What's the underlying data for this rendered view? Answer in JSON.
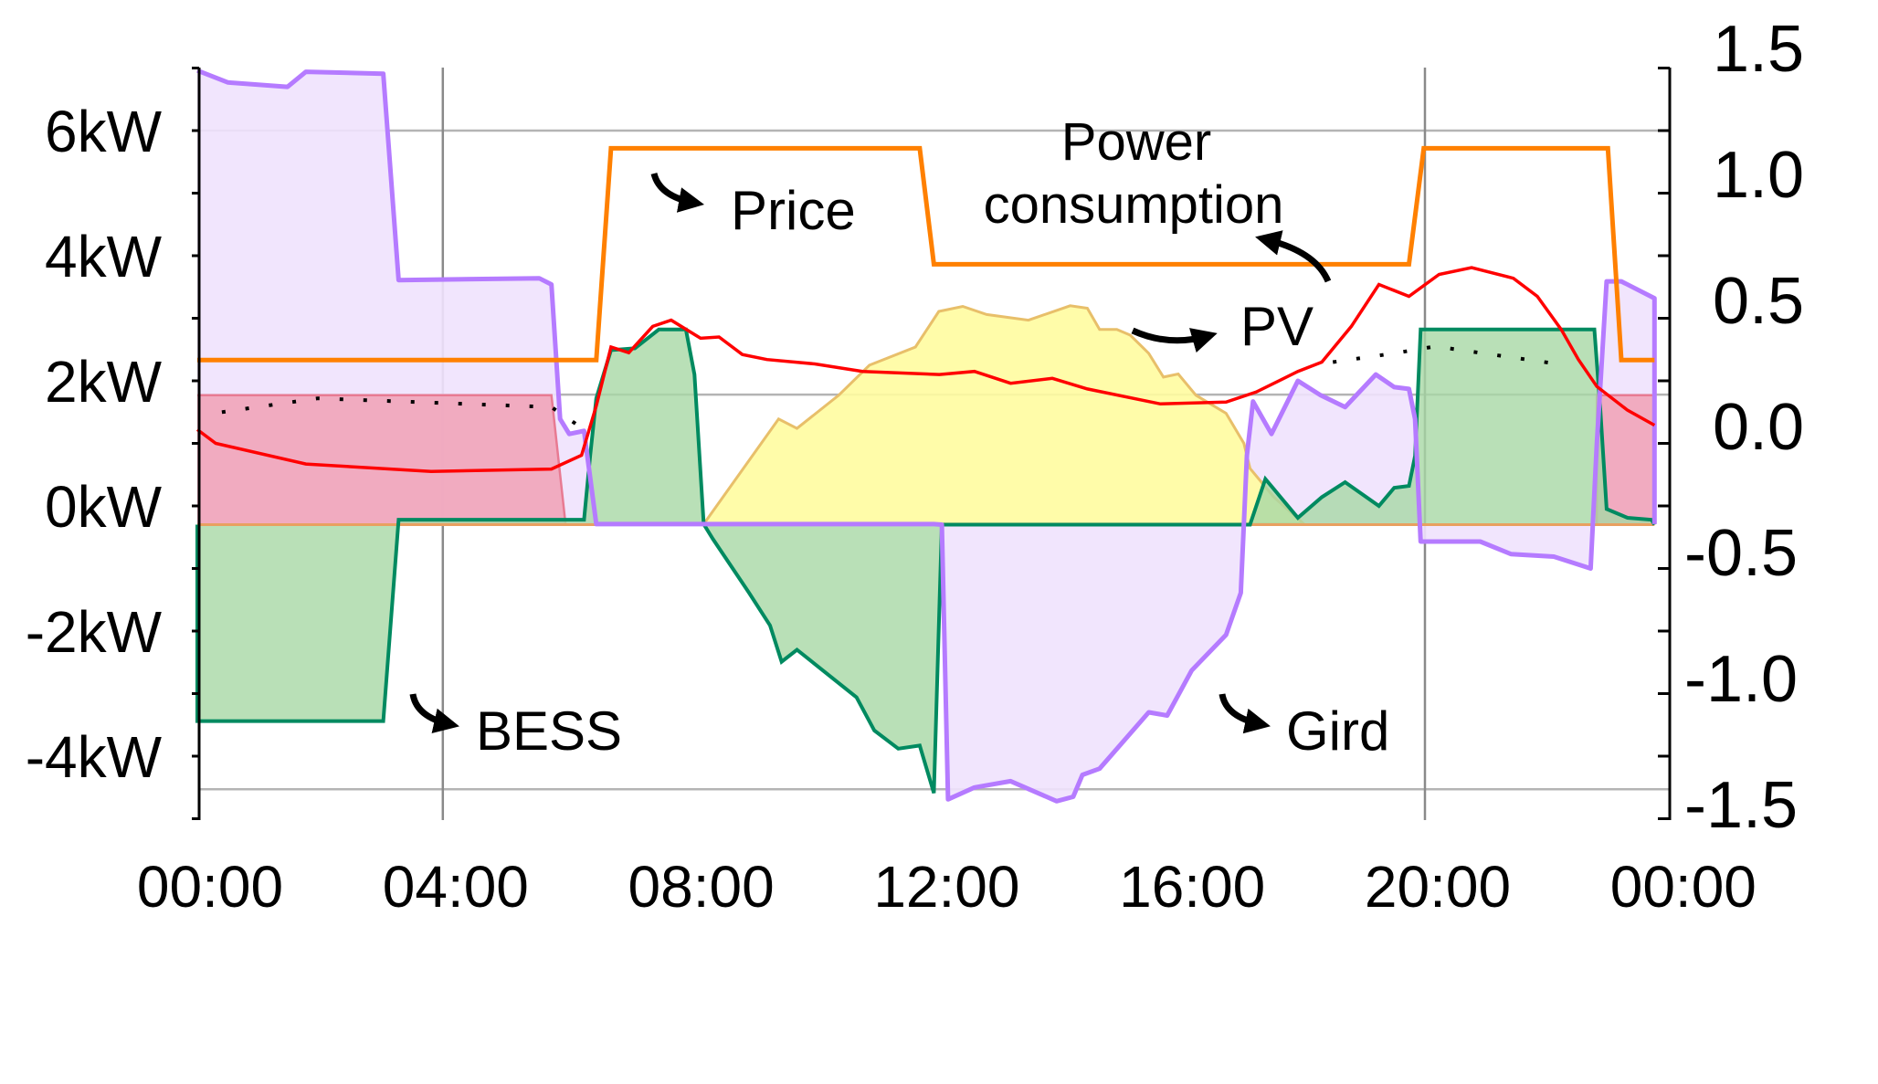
{
  "chart_data": {
    "type": "area",
    "title": "",
    "xlabel": "",
    "ylabel": "",
    "ylabel_right": "",
    "x_ticks": [
      "00:00",
      "04:00",
      "08:00",
      "12:00",
      "16:00",
      "20:00",
      "00:00"
    ],
    "x_range_hours": [
      0,
      24
    ],
    "y_ticks_left": [
      "6kW",
      "4kW",
      "2kW",
      "0kW",
      "-2kW",
      "-4kW"
    ],
    "y_left_range_kW": [
      -5,
      7
    ],
    "y_ticks_right": [
      "1.5",
      "1.0",
      "0.5",
      "0.0",
      "-0.5",
      "-1.0",
      "-1.5"
    ],
    "y_right_range": [
      -1.5,
      1.5
    ],
    "grid": true,
    "colors": {
      "grid_line": "#b57bff",
      "grid_fill": "#efe2fd",
      "bess_line": "#008a60",
      "bess_fill": "#a8d8a5",
      "pv_line": "#e8bf6a",
      "pv_fill": "#fffca0",
      "consumption_line": "#ff0000",
      "consumption_fill": "#f0a8bd",
      "price_line": "#ff8000",
      "dotted": "#000000"
    },
    "annotations": [
      {
        "key": "price",
        "text": "Price"
      },
      {
        "key": "consumption",
        "text": "Power consumption",
        "lines": [
          "Power",
          "consumption"
        ]
      },
      {
        "key": "pv",
        "text": "PV"
      },
      {
        "key": "bess",
        "text": "BESS"
      },
      {
        "key": "grid",
        "text": "Gird"
      }
    ],
    "series": [
      {
        "key": "grid",
        "name": "Gird",
        "axis": "left",
        "kind": "area",
        "baseline": -0.3,
        "x": [
          0,
          0.5,
          1.47,
          1.77,
          3.03,
          3.28,
          5.57,
          5.77,
          5.91,
          6.06,
          6.3,
          6.5,
          12.0,
          12.13,
          12.23,
          12.66,
          13.25,
          14.0,
          14.27,
          14.42,
          14.7,
          15.5,
          15.8,
          16.2,
          16.76,
          17.0,
          17.1,
          17.2,
          17.5,
          17.93,
          18.3,
          18.7,
          19.2,
          19.5,
          19.74,
          19.84,
          19.93,
          20.9,
          21.4,
          22.1,
          22.7,
          22.8,
          22.96,
          23.2,
          23.74,
          23.74
        ],
        "y": [
          6.96,
          6.77,
          6.7,
          6.94,
          6.91,
          3.61,
          3.64,
          3.54,
          1.39,
          1.15,
          1.2,
          -0.29,
          -0.29,
          -0.3,
          -4.69,
          -4.5,
          -4.4,
          -4.72,
          -4.65,
          -4.3,
          -4.2,
          -3.3,
          -3.35,
          -2.63,
          -2.06,
          -1.39,
          0.81,
          1.67,
          1.15,
          2.0,
          1.77,
          1.58,
          2.1,
          1.9,
          1.87,
          1.39,
          -0.57,
          -0.57,
          -0.77,
          -0.81,
          -1.0,
          1.0,
          3.59,
          3.59,
          3.32,
          -0.29
        ]
      },
      {
        "key": "consumption_fill",
        "name": "Power consumption",
        "axis": "left",
        "kind": "area",
        "baseline": -0.3,
        "segments": [
          {
            "x": [
              0,
              5.77,
              6.0
            ],
            "y": [
              1.77,
              1.77,
              -0.3
            ]
          },
          {
            "x": [
              22.8,
              22.8,
              23.74,
              23.74
            ],
            "y": [
              -0.3,
              1.77,
              1.77,
              -0.3
            ]
          }
        ]
      },
      {
        "key": "pv",
        "name": "PV",
        "axis": "left",
        "kind": "area",
        "baseline": -0.3,
        "x": [
          8.25,
          9.47,
          9.77,
          10.45,
          10.95,
          11.7,
          12.08,
          12.47,
          12.86,
          13.54,
          14.22,
          14.5,
          14.7,
          14.98,
          15.2,
          15.5,
          15.74,
          15.98,
          16.27,
          16.76,
          17.05,
          17.15,
          17.54,
          18.03
        ],
        "y": [
          -0.29,
          1.39,
          1.24,
          1.77,
          2.25,
          2.54,
          3.11,
          3.19,
          3.06,
          2.97,
          3.2,
          3.16,
          2.82,
          2.82,
          2.73,
          2.44,
          2.06,
          2.11,
          1.77,
          1.48,
          1.0,
          0.6,
          0.14,
          -0.29
        ]
      },
      {
        "key": "bess",
        "name": "BESS",
        "axis": "left",
        "kind": "area",
        "baseline": -0.3,
        "x": [
          0,
          0,
          3.03,
          3.28,
          6.3,
          6.4,
          6.5,
          6.74,
          7.13,
          7.52,
          7.96,
          8.1,
          8.25,
          8.4,
          8.99,
          9.33,
          9.52,
          9.77,
          10.74,
          11.03,
          11.42,
          11.77,
          12.0,
          12.13,
          17.15,
          17.4,
          17.93,
          18.32,
          18.7,
          19.25,
          19.5,
          19.74,
          19.84,
          19.93,
          22.76,
          22.86,
          22.96,
          23.3,
          23.69,
          23.74
        ],
        "y": [
          -0.3,
          -3.44,
          -3.44,
          -0.22,
          -0.22,
          0.8,
          1.72,
          2.49,
          2.52,
          2.82,
          2.82,
          2.1,
          -0.29,
          -0.53,
          -1.39,
          -1.91,
          -2.49,
          -2.3,
          -3.06,
          -3.59,
          -3.88,
          -3.83,
          -4.59,
          -0.3,
          -0.3,
          0.43,
          -0.19,
          0.14,
          0.38,
          0.0,
          0.29,
          0.32,
          0.8,
          2.82,
          2.82,
          1.5,
          -0.05,
          -0.19,
          -0.22,
          -0.3
        ]
      },
      {
        "key": "consumption",
        "name": "Power consumption",
        "axis": "left",
        "kind": "line",
        "x": [
          0,
          0.3,
          1.77,
          3.81,
          5.77,
          6.26,
          6.5,
          6.74,
          7.03,
          7.42,
          7.72,
          8.2,
          8.5,
          8.88,
          9.28,
          10.06,
          10.84,
          12.09,
          12.66,
          13.25,
          13.93,
          14.5,
          15.69,
          16.76,
          17.25,
          17.93,
          18.32,
          18.8,
          19.25,
          19.74,
          20.23,
          20.76,
          21.44,
          21.83,
          22.22,
          22.5,
          22.8,
          23.3,
          23.74
        ],
        "y": [
          1.22,
          1.0,
          0.67,
          0.55,
          0.59,
          0.81,
          1.6,
          2.54,
          2.45,
          2.87,
          2.97,
          2.68,
          2.7,
          2.42,
          2.34,
          2.27,
          2.15,
          2.1,
          2.15,
          1.96,
          2.04,
          1.87,
          1.63,
          1.66,
          1.82,
          2.15,
          2.3,
          2.87,
          3.54,
          3.35,
          3.7,
          3.81,
          3.64,
          3.35,
          2.82,
          2.34,
          1.91,
          1.53,
          1.29
        ]
      },
      {
        "key": "dotted",
        "axis": "left",
        "kind": "dotted",
        "segments": [
          {
            "x": [
              0.4,
              1.96,
              5.77,
              6.2
            ],
            "y": [
              1.5,
              1.72,
              1.58,
              1.29
            ]
          },
          {
            "x": [
              18.5,
              19.5,
              20.17,
              22.3
            ],
            "y": [
              2.3,
              2.44,
              2.55,
              2.25
            ]
          }
        ]
      },
      {
        "key": "price",
        "name": "Price",
        "axis": "right",
        "kind": "line",
        "x": [
          0,
          6.5,
          6.74,
          11.77,
          12.0,
          19.74,
          19.98,
          22.98,
          23.2,
          23.74
        ],
        "y": [
          0.26,
          0.26,
          1.1,
          1.1,
          0.64,
          0.64,
          1.1,
          1.1,
          0.26,
          0.26
        ]
      }
    ]
  }
}
